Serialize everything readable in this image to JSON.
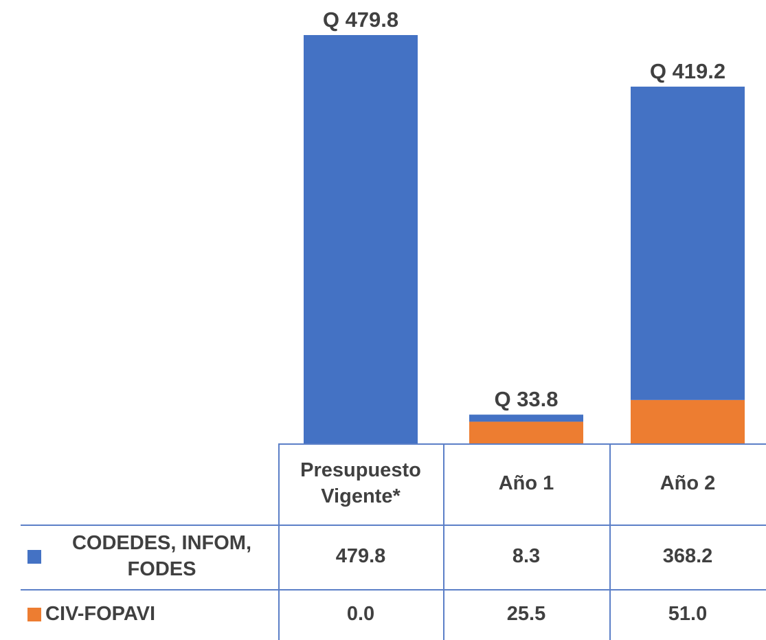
{
  "chart_data": {
    "type": "bar",
    "stacked": true,
    "categories": [
      "Presupuesto Vigente*",
      "Año 1",
      "Año 2"
    ],
    "series": [
      {
        "name": "CODEDES, INFOM, FODES",
        "color": "#4472c4",
        "values": [
          479.8,
          8.3,
          368.2
        ],
        "value_labels": [
          "479.8",
          "8.3",
          "368.2"
        ]
      },
      {
        "name": "CIV-FOPAVI",
        "color": "#ed7d31",
        "values": [
          0.0,
          25.5,
          51.0
        ],
        "value_labels": [
          "0.0",
          "25.5",
          "51.0"
        ]
      }
    ],
    "total_labels": [
      "Q 479.8",
      "Q 33.8",
      "Q 419.2"
    ]
  }
}
